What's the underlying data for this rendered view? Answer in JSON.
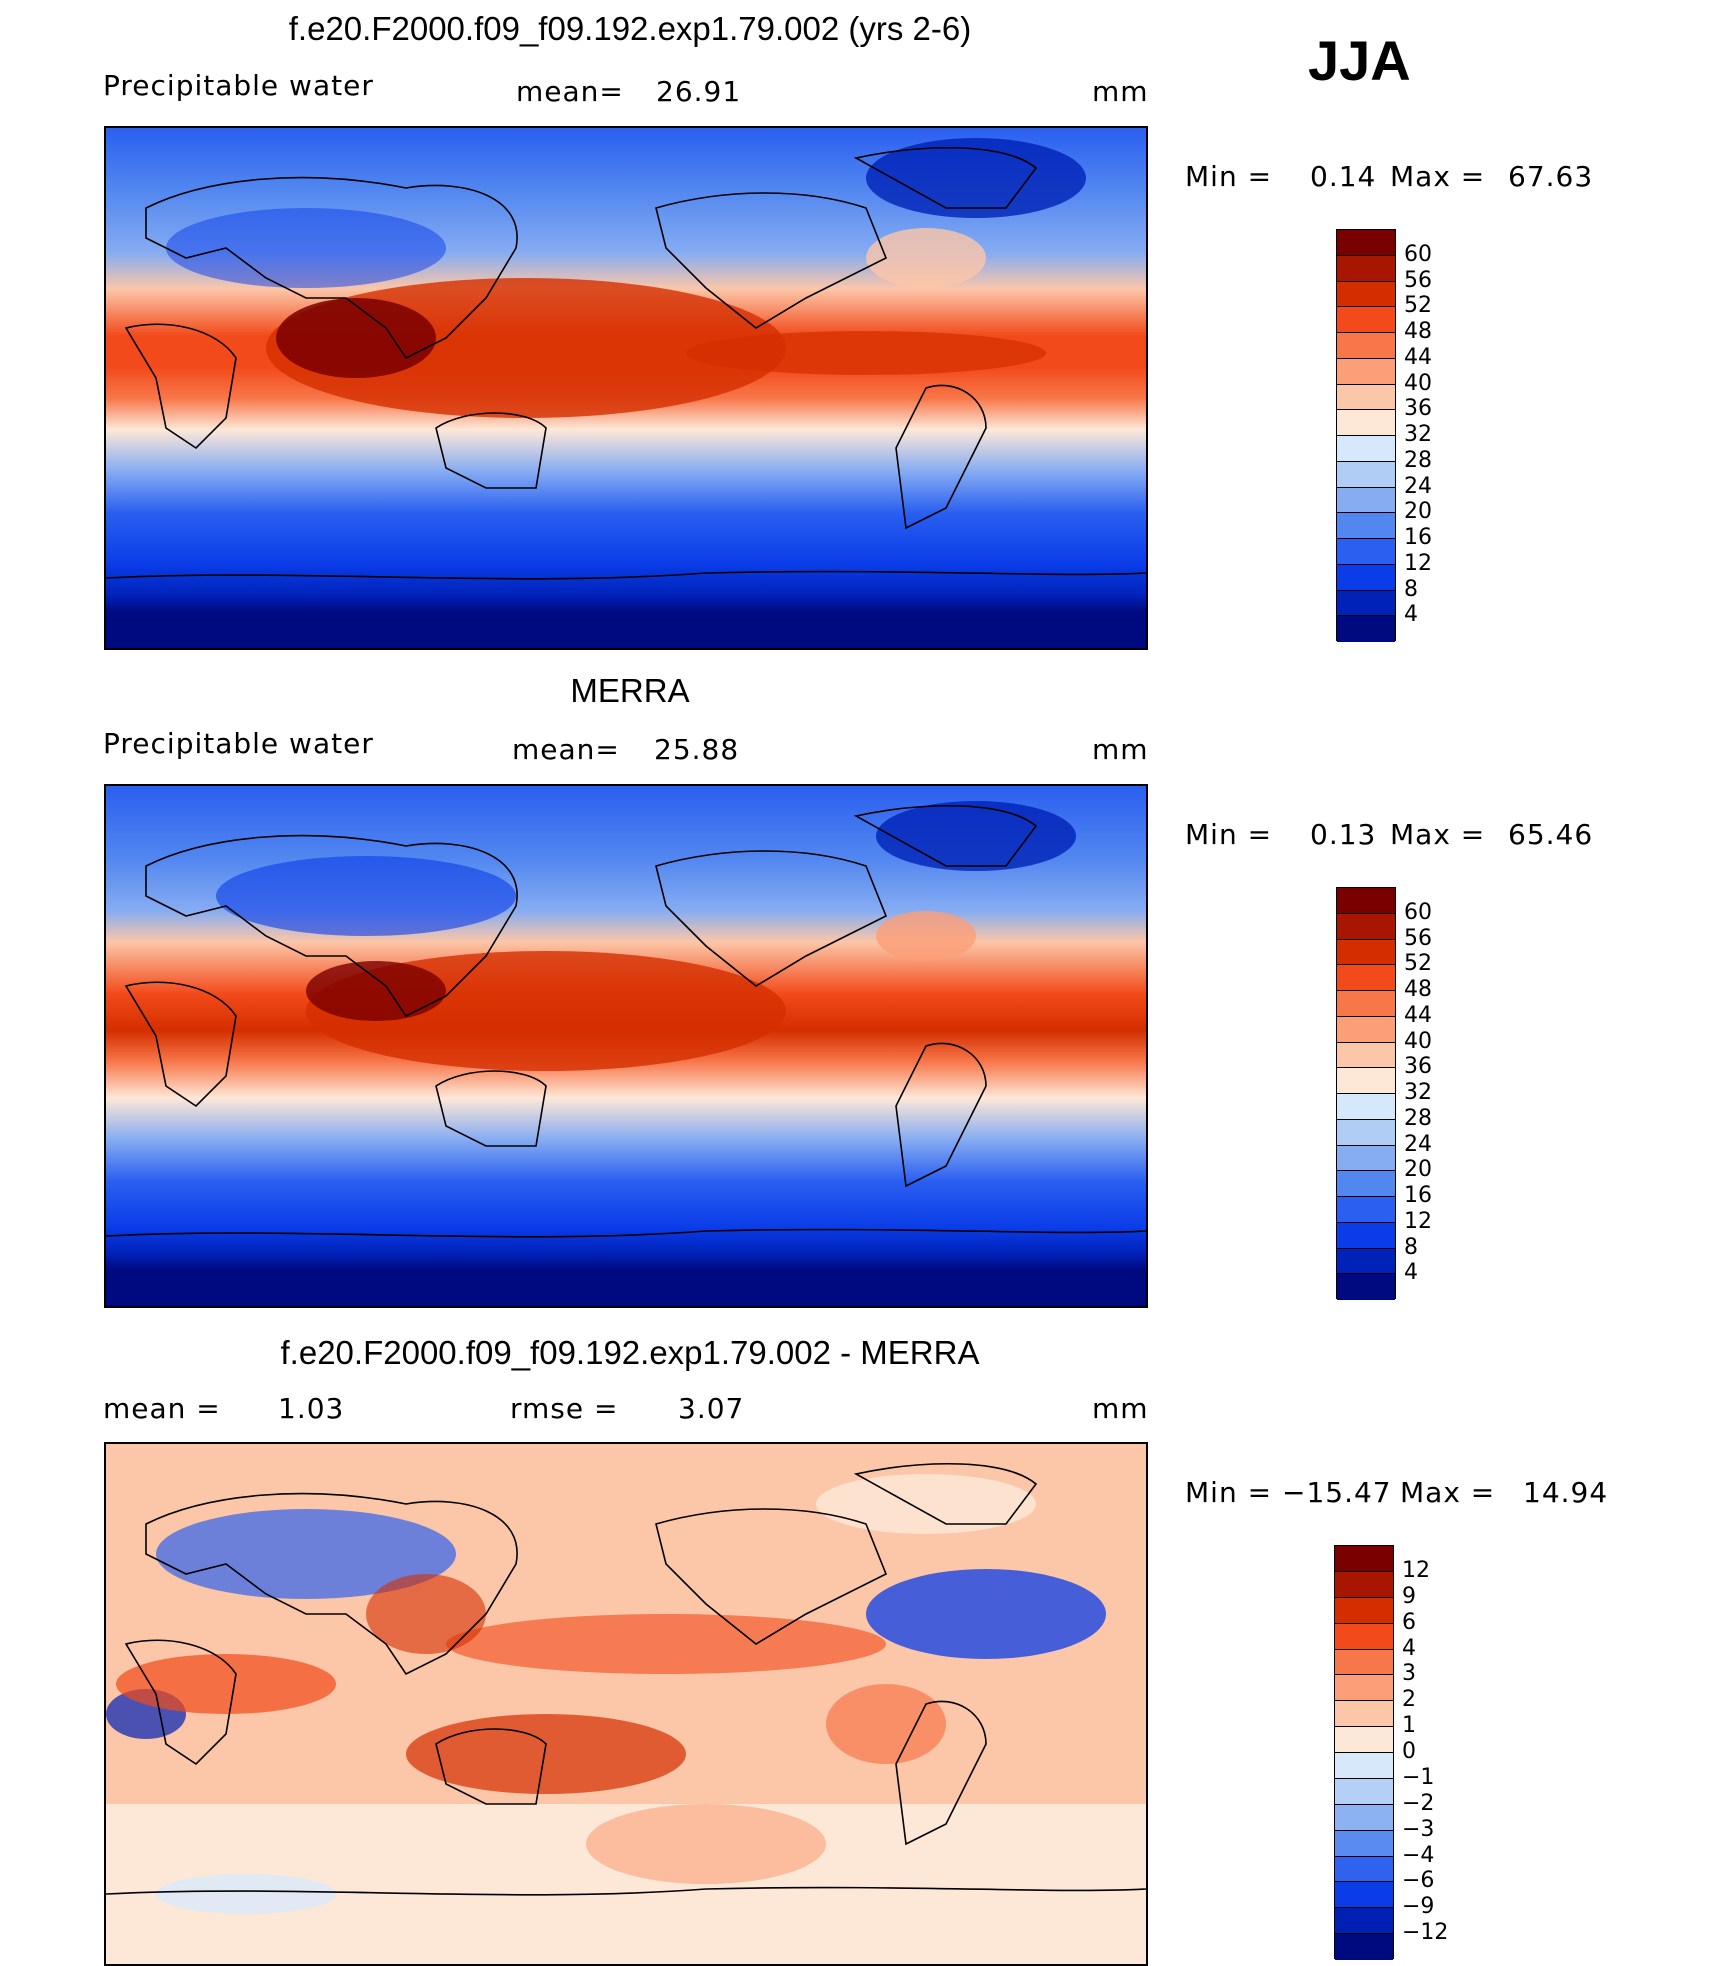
{
  "season": "JJA",
  "units": "mm",
  "panels": [
    {
      "title": "f.e20.F2000.f09_f09.192.exp1.79.002 (yrs 2-6)",
      "left_label": "Precipitable  water",
      "stat_label": "mean=",
      "stat_value": "26.91",
      "min_label": "Min  =",
      "min_value": "0.14",
      "max_label": "Max  =",
      "max_value": "67.63"
    },
    {
      "title": "MERRA",
      "left_label": "Precipitable  water",
      "stat_label": "mean=",
      "stat_value": "25.88",
      "min_label": "Min  =",
      "min_value": "0.13",
      "max_label": "Max  =",
      "max_value": "65.46"
    },
    {
      "title": "f.e20.F2000.f09_f09.192.exp1.79.002 - MERRA",
      "left_label": "mean  =",
      "left_value": "1.03",
      "stat_label": "rmse  =",
      "stat_value": "3.07",
      "min_label": "Min  =",
      "min_value": "−15.47",
      "max_label": "Max  =",
      "max_value": "14.94"
    }
  ],
  "colorbars": {
    "absolute": {
      "labels": [
        "60",
        "56",
        "52",
        "48",
        "44",
        "40",
        "36",
        "32",
        "28",
        "24",
        "20",
        "16",
        "12",
        "8",
        "4"
      ],
      "colors": [
        "#7a0000",
        "#a81600",
        "#d42e00",
        "#f24a1a",
        "#f8774a",
        "#fb9f78",
        "#fcc6a8",
        "#fde8d8",
        "#d6e8fb",
        "#b0cdf5",
        "#86acf2",
        "#5287f0",
        "#2a5ff0",
        "#0a3ce8",
        "#0022b8",
        "#000a80"
      ]
    },
    "difference": {
      "labels": [
        "12",
        "9",
        "6",
        "4",
        "3",
        "2",
        "1",
        "0",
        "−1",
        "−2",
        "−3",
        "−4",
        "−6",
        "−9",
        "−12"
      ],
      "colors": [
        "#7a0000",
        "#a81600",
        "#d42e00",
        "#f24a1a",
        "#f8774a",
        "#fb9f78",
        "#fcc6a8",
        "#fde8d8",
        "#d8e8fb",
        "#b4d0f6",
        "#8cb2f2",
        "#5a8cf0",
        "#2f62ef",
        "#0a3ce8",
        "#0020b4",
        "#000a80"
      ]
    }
  }
}
